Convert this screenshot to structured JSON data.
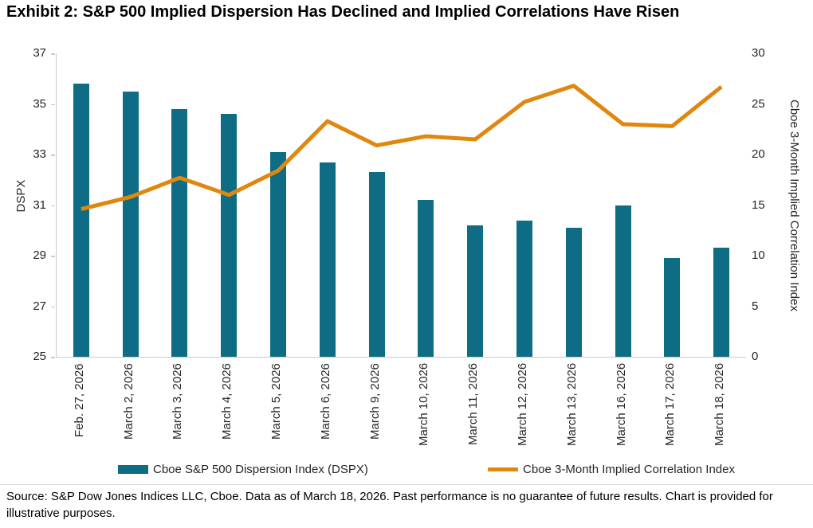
{
  "title": "Exhibit 2: S&P 500 Implied Dispersion Has Declined and Implied Correlations Have Risen",
  "chart_data": {
    "type": "bar+line",
    "categories": [
      "Feb. 27, 2026",
      "March 2, 2026",
      "March 3, 2026",
      "March 4, 2026",
      "March 5, 2026",
      "March 6, 2026",
      "March 9, 2026",
      "March 10, 2026",
      "March 11, 2026",
      "March 12, 2026",
      "March 13, 2026",
      "March 16, 2026",
      "March 17, 2026",
      "March 18, 2026"
    ],
    "series": [
      {
        "name": "Cboe S&P 500 Dispersion Index (DSPX)",
        "type": "bar",
        "axis": "left",
        "color": "#0e6d85",
        "values": [
          35.8,
          35.5,
          34.8,
          34.6,
          33.1,
          32.7,
          32.3,
          31.2,
          30.2,
          30.4,
          30.1,
          31.0,
          28.9,
          29.3
        ]
      },
      {
        "name": "Cboe 3-Month Implied Correlation Index",
        "type": "line",
        "axis": "right",
        "color": "#e0870f",
        "values": [
          14.6,
          15.8,
          17.7,
          16.0,
          18.4,
          23.3,
          20.9,
          21.8,
          21.5,
          25.2,
          26.8,
          23.0,
          22.8,
          26.7
        ]
      }
    ],
    "left_axis": {
      "label": "DSPX",
      "min": 25,
      "max": 37,
      "ticks": [
        37,
        35,
        33,
        31,
        29,
        27,
        25
      ]
    },
    "right_axis": {
      "label": "Cboe 3-Month Implied Correlation Index",
      "min": 0,
      "max": 30,
      "ticks": [
        30,
        25,
        20,
        15,
        10,
        5,
        0
      ]
    },
    "grid": false,
    "legend_position": "bottom"
  },
  "legend": {
    "items": [
      {
        "label": "Cboe S&P 500 Dispersion Index (DSPX)",
        "swatch": "bar-swatch"
      },
      {
        "label": "Cboe 3-Month Implied Correlation Index",
        "swatch": "line-swatch"
      }
    ]
  },
  "footer": {
    "source": "Source: S&P Dow Jones Indices LLC, Cboe. Data as of March 18, 2026. Past performance is no guarantee of future results. Chart is provided for illustrative purposes."
  }
}
